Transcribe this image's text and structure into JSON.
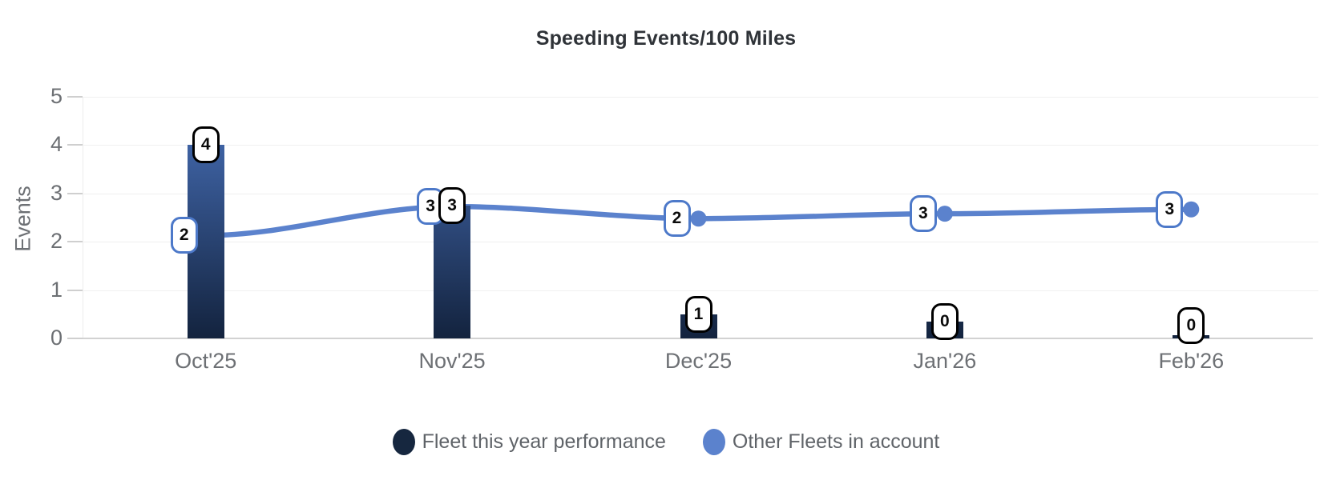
{
  "title": "Speeding Events/100 Miles",
  "y_axis": {
    "label": "Events",
    "ticks": [
      5,
      4,
      3,
      2,
      1,
      0
    ],
    "min": 0,
    "max": 5
  },
  "x_axis": {
    "categories": [
      "Oct'25",
      "Nov'25",
      "Dec'25",
      "Jan'26",
      "Feb'26"
    ]
  },
  "chart_data": {
    "type": "bar",
    "subtype": "bar-line-combo",
    "title": "Speeding Events/100 Miles",
    "xlabel": "",
    "ylabel": "Events",
    "ylim": [
      0,
      5
    ],
    "grid": "horizontal",
    "legend_position": "bottom",
    "categories": [
      "Oct'25",
      "Nov'25",
      "Dec'25",
      "Jan'26",
      "Feb'26"
    ],
    "series": [
      {
        "name": "Fleet this year performance",
        "type": "bar",
        "values": [
          4,
          2.75,
          0.5,
          0.35,
          0.05
        ],
        "point_labels": [
          "4",
          "3",
          "1",
          "0",
          "0"
        ],
        "label_border_color": "#000000",
        "gradient_top_color": "#4972bc",
        "gradient_bottom_color": "#13233e",
        "legend_color": "#16273f"
      },
      {
        "name": "Other Fleets in account",
        "type": "line",
        "values": [
          2.13,
          2.73,
          2.48,
          2.58,
          2.67
        ],
        "point_labels": [
          "2",
          "3",
          "2",
          "3",
          "3"
        ],
        "label_border_color": "#4d79c9",
        "color": "#5b82cd"
      }
    ]
  },
  "legend": {
    "items": [
      {
        "label": "Fleet this year performance",
        "color": "#16273f"
      },
      {
        "label": "Other Fleets in account",
        "color": "#5b82cd"
      }
    ]
  }
}
